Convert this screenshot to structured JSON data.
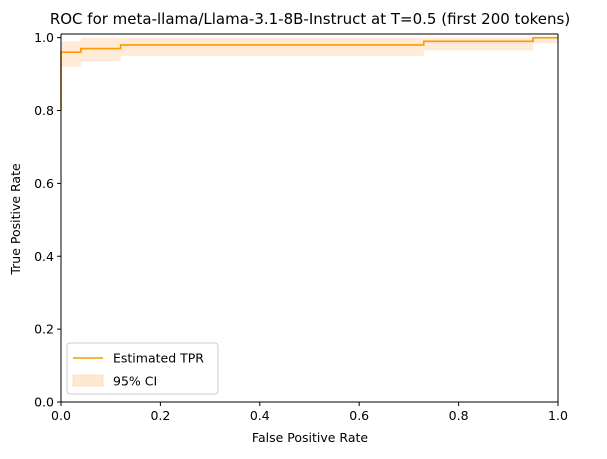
{
  "chart_data": {
    "type": "line",
    "title": "ROC for meta-llama/Llama-3.1-8B-Instruct at T=0.5 (first 200 tokens)",
    "xlabel": "False Positive Rate",
    "ylabel": "True Positive Rate",
    "xlim": [
      0,
      1
    ],
    "ylim": [
      0,
      1.01
    ],
    "grid": false,
    "legend_position": "lower-left",
    "x_ticks": [
      "0.0",
      "0.2",
      "0.4",
      "0.6",
      "0.8",
      "1.0"
    ],
    "y_ticks": [
      "0.0",
      "0.2",
      "0.4",
      "0.6",
      "0.8",
      "1.0"
    ],
    "series": [
      {
        "name": "Estimated TPR",
        "kind": "line",
        "color": "#ff9900",
        "x": [
          0.0,
          0.0,
          0.04,
          0.04,
          0.12,
          0.12,
          0.73,
          0.73,
          0.95,
          0.95,
          1.0
        ],
        "y": [
          0.8,
          0.96,
          0.96,
          0.97,
          0.97,
          0.98,
          0.98,
          0.99,
          0.99,
          1.0,
          1.0
        ]
      },
      {
        "name": "95% CI",
        "kind": "band",
        "color": "#ffe8d0",
        "x": [
          0.0,
          0.0,
          0.04,
          0.04,
          0.12,
          0.12,
          0.73,
          0.73,
          0.95,
          0.95,
          1.0
        ],
        "lower": [
          0.8,
          0.92,
          0.92,
          0.935,
          0.935,
          0.95,
          0.95,
          0.965,
          0.965,
          0.985,
          0.985
        ],
        "upper": [
          0.82,
          0.99,
          0.99,
          1.0,
          1.0,
          1.0,
          1.0,
          1.0,
          1.0,
          1.0,
          1.0
        ]
      }
    ]
  }
}
